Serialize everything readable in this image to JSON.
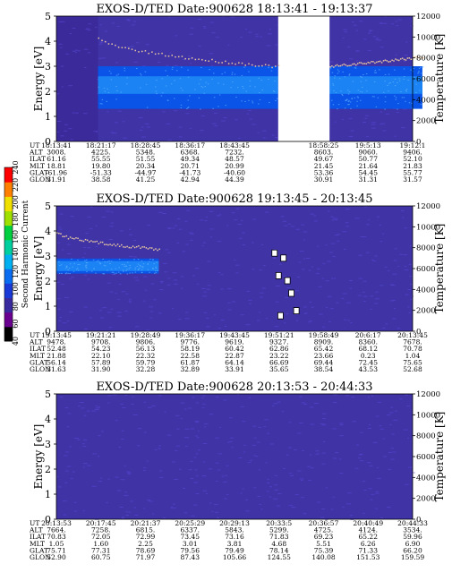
{
  "colors": {
    "background": "#ffffff",
    "field_dark": "#3b2a9a",
    "field": "#3f33a6",
    "band_blue": "#0a55e8",
    "band_cyan": "#1f8cf6",
    "noise_dot": "#5b4ad8",
    "hot_dot": "#e8c8a0",
    "bright": "#ffffff"
  },
  "colorbar": {
    "label": "Second Harmonic Current",
    "ticks": [
      "40",
      "60",
      "80",
      "100",
      "120",
      "140",
      "160",
      "180",
      "200",
      "220",
      "240"
    ],
    "colors": [
      "#000000",
      "#6a0090",
      "#3a2aa0",
      "#1a3ad8",
      "#0a6cf0",
      "#00b0f0",
      "#00d0a0",
      "#00d040",
      "#a0e000",
      "#f0e000",
      "#ff8000",
      "#ff0000"
    ]
  },
  "panels": [
    {
      "title": "EXOS-D/TED   Date:900628   18:13:41 - 19:13:37",
      "rows": [
        {
          "name": "UT",
          "values": [
            "18:13:41",
            "18:21:17",
            "18:28:45",
            "18:36:17",
            "18:43:45",
            "",
            "18:58:25",
            "19:5:13",
            "19:12:1"
          ]
        },
        {
          "name": "ALT",
          "values": [
            "3008.",
            "4225.",
            "5348.",
            "6368.",
            "7232.",
            "",
            "8603.",
            "9060.",
            "9406."
          ]
        },
        {
          "name": "ILAT",
          "values": [
            "61.16",
            "55.55",
            "51.55",
            "49.34",
            "48.57",
            "",
            "49.67",
            "50.77",
            "52.10"
          ]
        },
        {
          "name": "MLT",
          "values": [
            "18.81",
            "19.80",
            "20.34",
            "20.71",
            "20.99",
            "",
            "21.45",
            "21.64",
            "21.83"
          ]
        },
        {
          "name": "GLAT",
          "values": [
            "-61.96",
            "-51.33",
            "-44.97",
            "-41.73",
            "-40.60",
            "",
            "53.36",
            "54.45",
            "55.77"
          ]
        },
        {
          "name": "GLON",
          "values": [
            "31.91",
            "38.58",
            "41.25",
            "42.94",
            "44.39",
            "",
            "30.91",
            "31.31",
            "31.57"
          ]
        }
      ]
    },
    {
      "title": "EXOS-D/TED   Date:900628   19:13:45 - 20:13:45",
      "rows": [
        {
          "name": "UT",
          "values": [
            "19:13:45",
            "19:21:21",
            "19:28:49",
            "19:36:17",
            "19:43:45",
            "19:51:21",
            "19:58:49",
            "20:6:17",
            "20:13:45"
          ]
        },
        {
          "name": "ALT",
          "values": [
            "9478.",
            "9708.",
            "9806.",
            "9776.",
            "9619.",
            "9327.",
            "8909.",
            "8360.",
            "7678."
          ]
        },
        {
          "name": "ILAT",
          "values": [
            "52.48",
            "54.23",
            "56.13",
            "58.19",
            "60.42",
            "62.86",
            "65.42",
            "68.12",
            "70.78"
          ]
        },
        {
          "name": "MLT",
          "values": [
            "21.88",
            "22.10",
            "22.32",
            "22.58",
            "22.87",
            "23.22",
            "23.66",
            "0.23",
            "1.04"
          ]
        },
        {
          "name": "GLAT",
          "values": [
            "56.14",
            "57.89",
            "59.79",
            "61.87",
            "64.14",
            "66.69",
            "69.44",
            "72.45",
            "75.65"
          ]
        },
        {
          "name": "GLON",
          "values": [
            "31.63",
            "31.90",
            "32.28",
            "32.89",
            "33.91",
            "35.65",
            "38.54",
            "43.53",
            "52.68"
          ]
        }
      ]
    },
    {
      "title": "EXOS-D/TED   Date:900628   20:13:53 - 20:44:33",
      "rows": [
        {
          "name": "UT",
          "values": [
            "20:13:53",
            "20:17:45",
            "20:21:37",
            "20:25:29",
            "20:29:13",
            "20:33:5",
            "20:36:57",
            "20:40:49",
            "20:44:33"
          ]
        },
        {
          "name": "ALT",
          "values": [
            "7664.",
            "7258.",
            "6815.",
            "6337.",
            "5843.",
            "5299.",
            "4725.",
            "4124.",
            "3534."
          ]
        },
        {
          "name": "ILAT",
          "values": [
            "70.83",
            "72.05",
            "72.99",
            "73.45",
            "73.16",
            "71.83",
            "69.23",
            "65.22",
            "59.96"
          ]
        },
        {
          "name": "MLT",
          "values": [
            "1.05",
            "1.60",
            "2.25",
            "3.01",
            "3.81",
            "4.68",
            "5.51",
            "6.26",
            "6.90"
          ]
        },
        {
          "name": "GLAT",
          "values": [
            "75.71",
            "77.31",
            "78.69",
            "79.56",
            "79.49",
            "78.14",
            "75.39",
            "71.33",
            "66.20"
          ]
        },
        {
          "name": "GLON",
          "values": [
            "52.90",
            "60.75",
            "71.97",
            "87.43",
            "105.66",
            "124.55",
            "140.08",
            "151.53",
            "159.59"
          ]
        }
      ]
    }
  ],
  "chart_data": [
    {
      "type": "heatmap",
      "title": "EXOS-D/TED   Date:900628   18:13:41 - 19:13:37",
      "ylabel": "Energy [eV]",
      "y2label": "Temperature [K]",
      "ylim": [
        0,
        5
      ],
      "y2lim": [
        0,
        12000
      ],
      "yticks": [
        "0",
        "1",
        "2",
        "3",
        "4",
        "5"
      ],
      "y2ticks": [
        "0",
        "2000",
        "4000",
        "6000",
        "8000",
        "10000",
        "12000"
      ],
      "data_gap": [
        "18:50:00",
        "18:58:25"
      ],
      "bands": [
        {
          "from": "18:20:30",
          "to": "18:50:00",
          "energy_range": [
            1.3,
            3.0
          ],
          "peak_energy_range": [
            1.9,
            2.6
          ]
        },
        {
          "from": "18:58:25",
          "to": "19:13:37",
          "energy_range": [
            1.3,
            3.0
          ],
          "peak_energy_range": [
            1.9,
            2.6
          ]
        }
      ],
      "temperature_trace": {
        "start_energy": 4.2,
        "end_energy": 3.0,
        "late_energy": 3.4
      }
    },
    {
      "type": "heatmap",
      "title": "EXOS-D/TED   Date:900628   19:13:45 - 20:13:45",
      "ylabel": "Energy [eV]",
      "y2label": "Temperature [K]",
      "ylim": [
        0,
        5
      ],
      "y2lim": [
        0,
        12000
      ],
      "yticks": [
        "0",
        "1",
        "2",
        "3",
        "4",
        "5"
      ],
      "y2ticks": [
        "0",
        "2000",
        "4000",
        "6000",
        "8000",
        "10000",
        "12000"
      ],
      "bands": [
        {
          "from": "19:13:45",
          "to": "19:31:00",
          "energy_range": [
            2.3,
            2.9
          ],
          "peak_energy_range": [
            2.4,
            2.8
          ]
        }
      ],
      "temperature_trace": {
        "start_energy": 4.0,
        "end_energy": 3.3,
        "late_energy": 3.3
      },
      "bright_spots": [
        {
          "time": "19:50:30",
          "energy": 3.1
        },
        {
          "time": "19:52:00",
          "energy": 2.9
        },
        {
          "time": "19:51:10",
          "energy": 2.2
        },
        {
          "time": "19:52:40",
          "energy": 2.0
        },
        {
          "time": "19:53:20",
          "energy": 1.5
        },
        {
          "time": "19:54:10",
          "energy": 0.8
        },
        {
          "time": "19:51:30",
          "energy": 0.6
        }
      ]
    },
    {
      "type": "heatmap",
      "title": "EXOS-D/TED   Date:900628   20:13:53 - 20:44:33",
      "ylabel": "Energy [eV]",
      "y2label": "Temperature [K]",
      "ylim": [
        0,
        5
      ],
      "y2lim": [
        0,
        12000
      ],
      "yticks": [
        "0",
        "1",
        "2",
        "3",
        "4",
        "5"
      ],
      "y2ticks": [
        "0",
        "2000",
        "4000",
        "6000",
        "8000",
        "10000",
        "12000"
      ],
      "bands": []
    }
  ]
}
